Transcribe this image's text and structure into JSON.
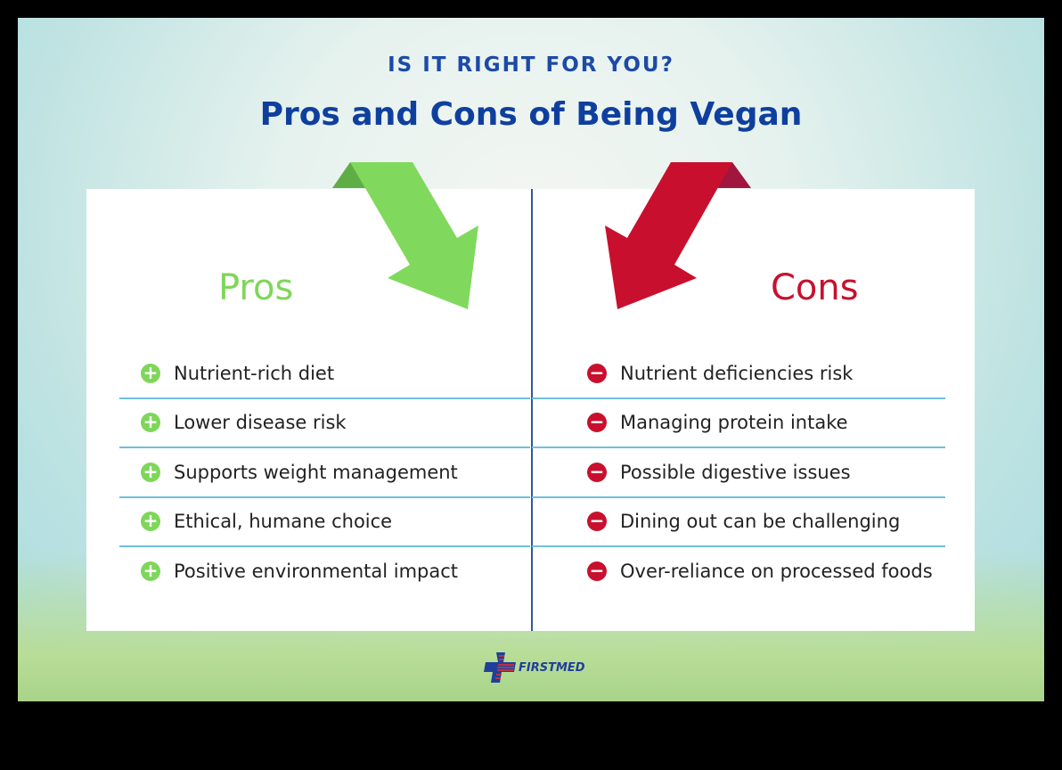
{
  "kicker": "IS IT RIGHT FOR YOU?",
  "title": "Pros and Cons of Being Vegan",
  "pros": {
    "heading": "Pros",
    "icon": "plus-circle-icon",
    "color": "#7fd65a",
    "items": [
      "Nutrient-rich diet",
      "Lower disease risk",
      "Supports weight management",
      "Ethical, humane choice",
      "Positive environmental impact"
    ]
  },
  "cons": {
    "heading": "Cons",
    "icon": "minus-circle-icon",
    "color": "#c8102e",
    "items": [
      "Nutrient deficiencies risk",
      "Managing protein intake",
      "Possible digestive issues",
      "Dining out can be challenging",
      "Over-reliance on processed foods"
    ]
  },
  "logo": {
    "text": "FIRSTMED"
  }
}
